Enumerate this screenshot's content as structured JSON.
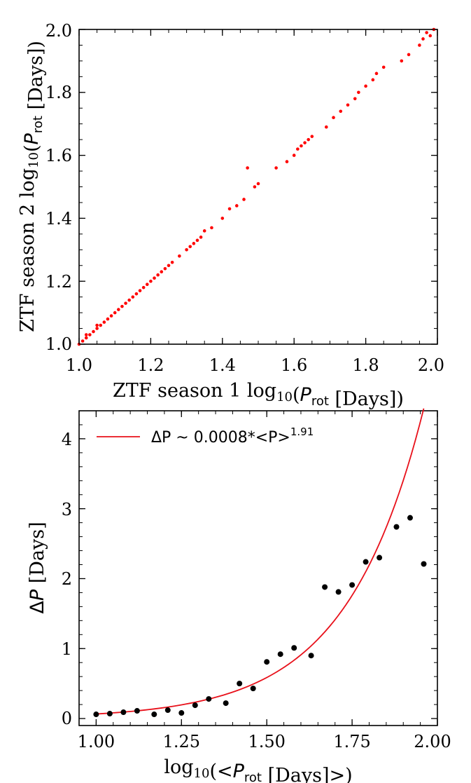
{
  "chart_data": [
    {
      "type": "scatter",
      "xlabel": "ZTF season 1 log10(Prot [Days])",
      "ylabel": "ZTF season 2 log10(Prot [Days])",
      "xlim": [
        1.0,
        2.0
      ],
      "ylim": [
        1.0,
        2.0
      ],
      "xticks": [
        "1.0",
        "1.2",
        "1.4",
        "1.6",
        "1.8",
        "2.0"
      ],
      "yticks": [
        "1.0",
        "1.2",
        "1.4",
        "1.6",
        "1.8",
        "2.0"
      ],
      "grid": false,
      "marker_color": "#ff0000",
      "series": [
        {
          "x": [
            1.0,
            1.01,
            1.02,
            1.02,
            1.03,
            1.04,
            1.05,
            1.05,
            1.06,
            1.07,
            1.08,
            1.09,
            1.1,
            1.11,
            1.12,
            1.13,
            1.14,
            1.15,
            1.16,
            1.17,
            1.18,
            1.19,
            1.2,
            1.21,
            1.22,
            1.23,
            1.24,
            1.25,
            1.26,
            1.28,
            1.3,
            1.31,
            1.32,
            1.33,
            1.34,
            1.35,
            1.37,
            1.4,
            1.42,
            1.44,
            1.46,
            1.47,
            1.49,
            1.5,
            1.55,
            1.58,
            1.6,
            1.61,
            1.62,
            1.63,
            1.64,
            1.65,
            1.69,
            1.71,
            1.73,
            1.75,
            1.77,
            1.78,
            1.8,
            1.82,
            1.83,
            1.85,
            1.9,
            1.92,
            1.95,
            1.96,
            1.97,
            1.98,
            1.99
          ],
          "y": [
            1.0,
            1.01,
            1.02,
            1.03,
            1.03,
            1.04,
            1.05,
            1.06,
            1.06,
            1.07,
            1.08,
            1.09,
            1.1,
            1.11,
            1.12,
            1.13,
            1.14,
            1.15,
            1.16,
            1.17,
            1.18,
            1.19,
            1.2,
            1.21,
            1.22,
            1.23,
            1.24,
            1.25,
            1.26,
            1.28,
            1.3,
            1.31,
            1.32,
            1.33,
            1.34,
            1.36,
            1.37,
            1.4,
            1.43,
            1.44,
            1.46,
            1.56,
            1.5,
            1.51,
            1.56,
            1.58,
            1.6,
            1.62,
            1.63,
            1.64,
            1.65,
            1.66,
            1.69,
            1.72,
            1.74,
            1.76,
            1.78,
            1.8,
            1.82,
            1.84,
            1.86,
            1.88,
            1.9,
            1.92,
            1.95,
            1.97,
            1.99,
            1.98,
            2.0
          ]
        }
      ]
    },
    {
      "type": "scatter",
      "xlabel": "log10(<Prot [Days]>)",
      "ylabel": "ΔP [Days]",
      "xlim": [
        0.95,
        2.0
      ],
      "ylim": [
        -0.1,
        4.4
      ],
      "xticks": [
        "1.00",
        "1.25",
        "1.50",
        "1.75",
        "2.00"
      ],
      "yticks": [
        "0",
        "1",
        "2",
        "3",
        "4"
      ],
      "grid": false,
      "legend_position": "top-left",
      "series": [
        {
          "marker_color": "#000000",
          "x": [
            1.0,
            1.04,
            1.08,
            1.12,
            1.17,
            1.21,
            1.25,
            1.29,
            1.33,
            1.38,
            1.42,
            1.46,
            1.5,
            1.54,
            1.58,
            1.63,
            1.67,
            1.71,
            1.75,
            1.79,
            1.83,
            1.88,
            1.92,
            1.96
          ],
          "y": [
            0.06,
            0.07,
            0.09,
            0.11,
            0.06,
            0.12,
            0.08,
            0.19,
            0.28,
            0.22,
            0.5,
            0.43,
            0.81,
            0.92,
            1.01,
            0.9,
            1.88,
            1.81,
            1.91,
            2.24,
            2.3,
            2.74,
            2.87,
            2.21
          ]
        },
        {
          "name": "ΔP ~ 0.0008*<P>^1.91",
          "type": "line",
          "color": "#e8101a",
          "model": {
            "a": 0.0008,
            "b": 1.91
          },
          "x_range": [
            1.0,
            1.96
          ]
        }
      ]
    }
  ],
  "legend": {
    "prefix": "ΔP ~ 0.0008*<P>",
    "exponent": "1.91"
  }
}
